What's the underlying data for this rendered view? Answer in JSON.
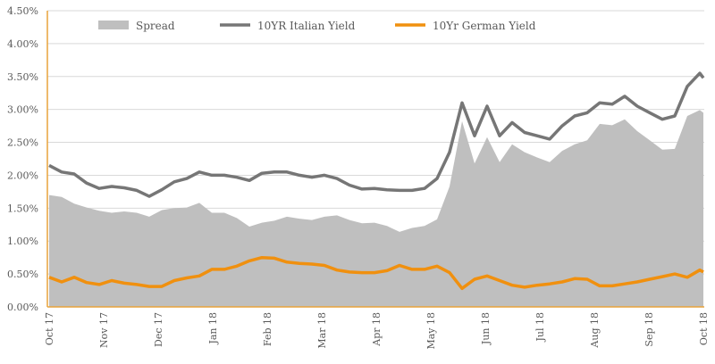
{
  "chart_data": {
    "type": "line",
    "title": "",
    "xlabel": "",
    "ylabel": "",
    "ylim": [
      0,
      4.5
    ],
    "y_ticks": [
      "0.00%",
      "0.50%",
      "1.00%",
      "1.50%",
      "2.00%",
      "2.50%",
      "3.00%",
      "3.50%",
      "4.00%",
      "4.50%"
    ],
    "x_ticks": [
      "Oct 17",
      "Nov 17",
      "Dec 17",
      "Jan 18",
      "Feb 18",
      "Mar 18",
      "Apr 18",
      "May 18",
      "Jun 18",
      "Jul 18",
      "Aug 18",
      "Sep 18",
      "Oct 18"
    ],
    "grid": true,
    "legend_position": "top",
    "x_days": [
      0,
      7,
      14,
      21,
      28,
      35,
      42,
      49,
      56,
      63,
      70,
      77,
      84,
      91,
      98,
      105,
      112,
      119,
      126,
      133,
      140,
      147,
      154,
      161,
      168,
      175,
      182,
      189,
      196,
      203,
      210,
      217,
      224,
      231,
      238,
      245,
      252,
      259,
      266,
      273,
      280,
      287,
      294,
      301,
      308,
      315,
      322,
      329,
      336,
      343,
      350,
      357,
      364,
      366
    ],
    "series": [
      {
        "name": "Spread",
        "type": "area",
        "color": "#BFBFBF",
        "values": "italian minus german"
      },
      {
        "name": "10YR Italian Yield",
        "type": "line",
        "color": "#767676",
        "values": [
          2.15,
          2.05,
          2.02,
          1.88,
          1.8,
          1.83,
          1.81,
          1.77,
          1.68,
          1.78,
          1.9,
          1.95,
          2.05,
          2.0,
          2.0,
          1.97,
          1.92,
          2.03,
          2.05,
          2.05,
          2.0,
          1.97,
          2.0,
          1.95,
          1.85,
          1.79,
          1.8,
          1.78,
          1.77,
          1.77,
          1.8,
          1.95,
          2.35,
          3.1,
          2.6,
          3.05,
          2.6,
          2.8,
          2.65,
          2.6,
          2.55,
          2.75,
          2.9,
          2.95,
          3.1,
          3.08,
          3.2,
          3.05,
          2.95,
          2.85,
          2.9,
          3.35,
          3.55,
          3.48
        ]
      },
      {
        "name": "10Yr German Yield",
        "type": "line",
        "color": "#F0900F",
        "values": [
          0.45,
          0.38,
          0.45,
          0.37,
          0.34,
          0.4,
          0.36,
          0.34,
          0.31,
          0.31,
          0.4,
          0.44,
          0.47,
          0.57,
          0.57,
          0.62,
          0.7,
          0.75,
          0.74,
          0.68,
          0.66,
          0.65,
          0.63,
          0.56,
          0.53,
          0.52,
          0.52,
          0.55,
          0.63,
          0.57,
          0.57,
          0.62,
          0.52,
          0.28,
          0.42,
          0.47,
          0.4,
          0.33,
          0.3,
          0.33,
          0.35,
          0.38,
          0.43,
          0.42,
          0.32,
          0.32,
          0.35,
          0.38,
          0.42,
          0.46,
          0.5,
          0.45,
          0.56,
          0.53
        ]
      }
    ]
  }
}
